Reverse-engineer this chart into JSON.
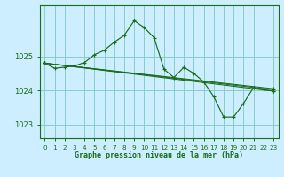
{
  "title": "Graphe pression niveau de la mer (hPa)",
  "background_color": "#cceeff",
  "grid_color": "#88cccc",
  "line_color": "#1a6b1a",
  "marker_color": "#1a6b1a",
  "xlim": [
    -0.5,
    23.5
  ],
  "ylim": [
    1022.6,
    1026.5
  ],
  "yticks": [
    1023,
    1024,
    1025
  ],
  "xticks": [
    0,
    1,
    2,
    3,
    4,
    5,
    6,
    7,
    8,
    9,
    10,
    11,
    12,
    13,
    14,
    15,
    16,
    17,
    18,
    19,
    20,
    21,
    22,
    23
  ],
  "main_series": {
    "x": [
      0,
      1,
      2,
      3,
      4,
      5,
      6,
      7,
      8,
      9,
      10,
      11,
      12,
      13,
      14,
      15,
      16,
      17,
      18,
      19,
      20,
      21,
      22,
      23
    ],
    "y": [
      1024.8,
      1024.65,
      1024.68,
      1024.72,
      1024.82,
      1025.05,
      1025.18,
      1025.42,
      1025.62,
      1026.05,
      1025.85,
      1025.55,
      1024.62,
      1024.38,
      1024.68,
      1024.5,
      1024.25,
      1023.82,
      1023.22,
      1023.22,
      1023.62,
      1024.08,
      1024.02,
      1023.98
    ]
  },
  "fan_lines": [
    {
      "x": [
        0,
        23
      ],
      "y": [
        1024.8,
        1024.02
      ]
    },
    {
      "x": [
        0,
        23
      ],
      "y": [
        1024.8,
        1023.98
      ]
    },
    {
      "x": [
        0,
        23
      ],
      "y": [
        1024.8,
        1024.05
      ]
    }
  ]
}
